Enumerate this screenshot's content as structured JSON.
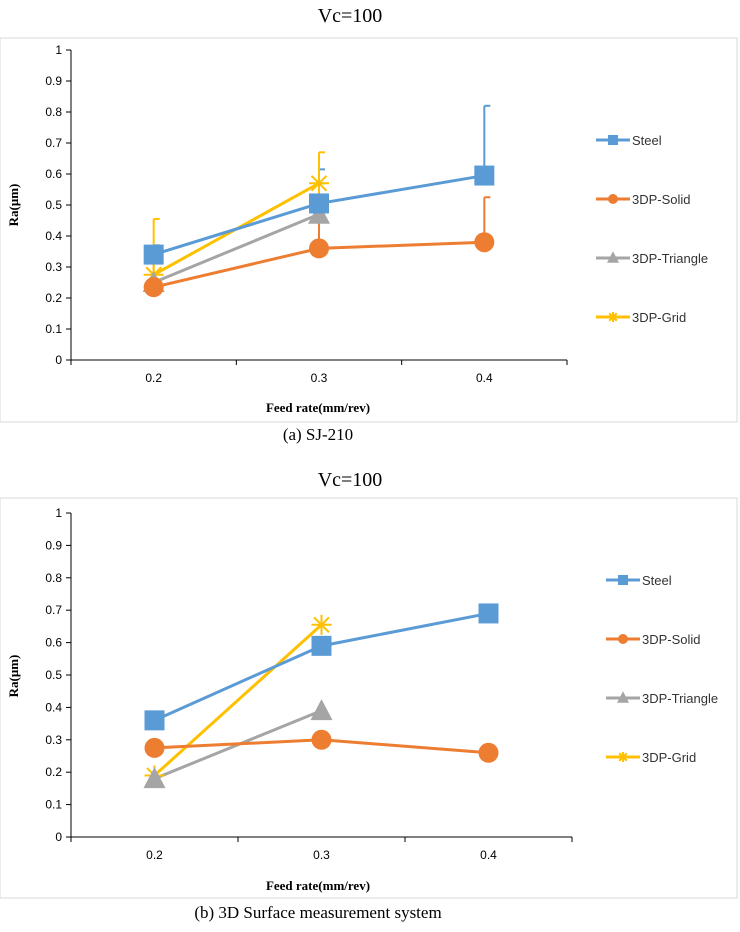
{
  "chart_data": [
    {
      "type": "line",
      "title": "Vc=100",
      "caption": "(a) SJ-210",
      "xlabel": "Feed rate(mm/rev)",
      "ylabel": "Ra(μm)",
      "categories": [
        "0.2",
        "0.3",
        "0.4"
      ],
      "ylim": [
        0,
        1
      ],
      "yticks": [
        "0",
        "0.1",
        "0.2",
        "0.3",
        "0.4",
        "0.5",
        "0.6",
        "0.7",
        "0.8",
        "0.9",
        "1"
      ],
      "legend_position": "right",
      "series": [
        {
          "name": "Steel",
          "marker": "square",
          "values": [
            0.34,
            0.505,
            0.595
          ],
          "error_upper": [
            0.03,
            0.11,
            0.225
          ]
        },
        {
          "name": "3DP-Solid",
          "marker": "circle",
          "values": [
            0.235,
            0.36,
            0.38
          ],
          "error_upper": [
            0.0,
            0.1,
            0.145
          ]
        },
        {
          "name": "3DP-Triangle",
          "marker": "triangle",
          "values": [
            0.25,
            0.47,
            null
          ],
          "error_upper": [
            0.0,
            0.1,
            null
          ]
        },
        {
          "name": "3DP-Grid",
          "marker": "star",
          "values": [
            0.275,
            0.57,
            null
          ],
          "error_upper": [
            0.18,
            0.1,
            null
          ]
        }
      ]
    },
    {
      "type": "line",
      "title": "Vc=100",
      "caption": "(b) 3D Surface measurement system",
      "xlabel": "Feed rate(mm/rev)",
      "ylabel": "Ra(μm)",
      "categories": [
        "0.2",
        "0.3",
        "0.4"
      ],
      "ylim": [
        0,
        1
      ],
      "yticks": [
        "0",
        "0.1",
        "0.2",
        "0.3",
        "0.4",
        "0.5",
        "0.6",
        "0.7",
        "0.8",
        "0.9",
        "1"
      ],
      "legend_position": "right",
      "series": [
        {
          "name": "Steel",
          "marker": "square",
          "values": [
            0.36,
            0.59,
            0.69
          ],
          "error_upper": [
            null,
            null,
            null
          ]
        },
        {
          "name": "3DP-Solid",
          "marker": "circle",
          "values": [
            0.275,
            0.3,
            0.26
          ],
          "error_upper": [
            null,
            null,
            null
          ]
        },
        {
          "name": "3DP-Triangle",
          "marker": "triangle",
          "values": [
            0.18,
            0.39,
            null
          ],
          "error_upper": [
            null,
            null,
            null
          ]
        },
        {
          "name": "3DP-Grid",
          "marker": "star",
          "values": [
            0.19,
            0.655,
            null
          ],
          "error_upper": [
            null,
            null,
            null
          ]
        }
      ]
    }
  ],
  "colors": {
    "Steel": "#5b9bd5",
    "3DP-Solid": "#ed7d31",
    "3DP-Triangle": "#a5a5a5",
    "3DP-Grid": "#ffc000",
    "axis": "#000000",
    "frame": "#d9d9d9"
  }
}
